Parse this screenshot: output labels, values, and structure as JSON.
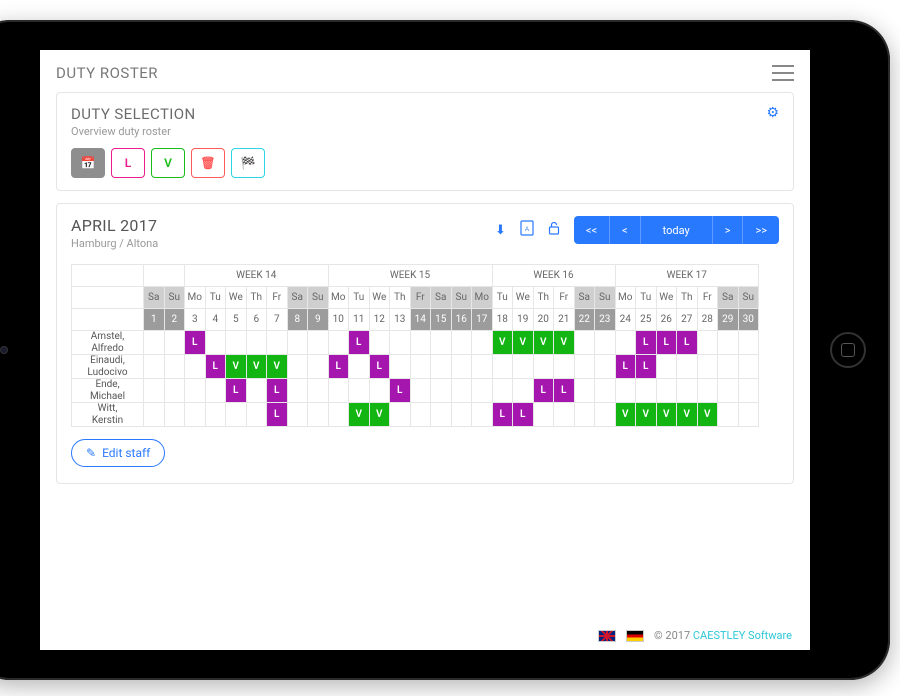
{
  "app": {
    "title": "DUTY ROSTER"
  },
  "duty_panel": {
    "title": "DUTY SELECTION",
    "subtitle": "Overview duty roster",
    "buttons": {
      "calendar": {
        "name": "calendar-tool-button",
        "style": "filled",
        "icon": "📅"
      },
      "L": {
        "name": "mark-l-button",
        "style": "pink",
        "label": "L"
      },
      "V": {
        "name": "mark-v-button",
        "style": "green",
        "label": "V"
      },
      "trash": {
        "name": "clear-button",
        "style": "red",
        "icon": "🗑"
      },
      "dash": {
        "name": "dashboard-button",
        "style": "cyan",
        "icon": "🏁"
      }
    }
  },
  "calendar": {
    "month_title": "APRIL 2017",
    "location": "Hamburg / Altona",
    "actions": {
      "download": "⬇",
      "pdf": "⎙",
      "unlock": "🔓"
    },
    "nav": {
      "first": "<<",
      "prev": "<",
      "today": "today",
      "next": ">",
      "last": ">>"
    },
    "weeks": [
      "WEEK 14",
      "WEEK 15",
      "WEEK 16",
      "WEEK 17"
    ],
    "days": [
      {
        "n": 1,
        "dow": "Sa",
        "wk": 0,
        "wkend": true
      },
      {
        "n": 2,
        "dow": "Su",
        "wk": 0,
        "wkend": true
      },
      {
        "n": 3,
        "dow": "Mo",
        "wk": 0
      },
      {
        "n": 4,
        "dow": "Tu",
        "wk": 0
      },
      {
        "n": 5,
        "dow": "We",
        "wk": 0
      },
      {
        "n": 6,
        "dow": "Th",
        "wk": 0
      },
      {
        "n": 7,
        "dow": "Fr",
        "wk": 0
      },
      {
        "n": 8,
        "dow": "Sa",
        "wk": 0,
        "wkend": true
      },
      {
        "n": 9,
        "dow": "Su",
        "wk": 0,
        "wkend": true
      },
      {
        "n": 10,
        "dow": "Mo",
        "wk": 1
      },
      {
        "n": 11,
        "dow": "Tu",
        "wk": 1
      },
      {
        "n": 12,
        "dow": "We",
        "wk": 1
      },
      {
        "n": 13,
        "dow": "Th",
        "wk": 1
      },
      {
        "n": 14,
        "dow": "Fr",
        "wk": 1,
        "wkend": true
      },
      {
        "n": 15,
        "dow": "Sa",
        "wk": 1,
        "wkend": true
      },
      {
        "n": 16,
        "dow": "Su",
        "wk": 1,
        "wkend": true
      },
      {
        "n": 17,
        "dow": "Mo",
        "wk": 2,
        "wkend": true
      },
      {
        "n": 18,
        "dow": "Tu",
        "wk": 2
      },
      {
        "n": 19,
        "dow": "We",
        "wk": 2
      },
      {
        "n": 20,
        "dow": "Th",
        "wk": 2
      },
      {
        "n": 21,
        "dow": "Fr",
        "wk": 2
      },
      {
        "n": 22,
        "dow": "Sa",
        "wk": 2,
        "wkend": true
      },
      {
        "n": 23,
        "dow": "Su",
        "wk": 2,
        "wkend": true
      },
      {
        "n": 24,
        "dow": "Mo",
        "wk": 3
      },
      {
        "n": 25,
        "dow": "Tu",
        "wk": 3
      },
      {
        "n": 26,
        "dow": "We",
        "wk": 3
      },
      {
        "n": 27,
        "dow": "Th",
        "wk": 3
      },
      {
        "n": 28,
        "dow": "Fr",
        "wk": 3
      },
      {
        "n": 29,
        "dow": "Sa",
        "wk": 3,
        "wkend": true
      },
      {
        "n": 30,
        "dow": "Su",
        "wk": 3,
        "wkend": true
      }
    ],
    "staff": [
      {
        "name": "Amstel, Alfredo",
        "marks": {
          "3": "L",
          "11": "L",
          "18": "V",
          "19": "V",
          "20": "V",
          "21": "V",
          "25": "L",
          "26": "L",
          "27": "L"
        }
      },
      {
        "name": "Einaudi, Ludocivo",
        "marks": {
          "4": "L",
          "5": "V",
          "6": "V",
          "7": "V",
          "10": "L",
          "12": "L",
          "24": "L",
          "25": "L"
        }
      },
      {
        "name": "Ende, Michael",
        "marks": {
          "5": "L",
          "7": "L",
          "13": "L",
          "20": "L",
          "21": "L"
        }
      },
      {
        "name": "Witt, Kerstin",
        "marks": {
          "7": "L",
          "11": "V",
          "12": "V",
          "18": "L",
          "19": "L",
          "24": "V",
          "25": "V",
          "26": "V",
          "27": "V",
          "28": "V"
        }
      }
    ],
    "edit_staff_label": "Edit staff"
  },
  "footer": {
    "copyright": "© 2017 ",
    "company": "CAESTLEY Software"
  },
  "colors": {
    "L": "#a516af",
    "V": "#13b513",
    "accent": "#2979ff",
    "weekend_head": "#cfcfcf",
    "weekend_date": "#9c9c9c"
  }
}
